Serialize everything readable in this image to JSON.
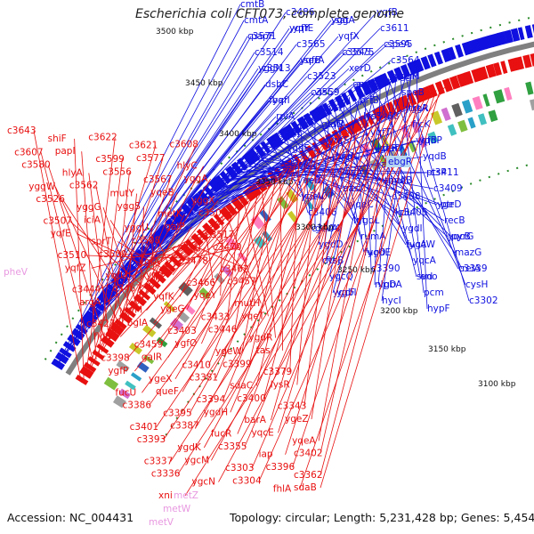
{
  "title": "Escherichia coli CFT073, complete genome",
  "footer": {
    "accession": "Accession: NC_004431",
    "topology": "Topology: circular; Length: 5,231,428 bp; Genes: 5,454"
  },
  "colors": {
    "forward": "#1010e0",
    "reverse": "#e81010",
    "rna": "#e898e0",
    "backbone": "#808080",
    "dots": "#2a8a2a",
    "highlight_box": "#b8d8f0"
  },
  "ticks": [
    "3500 kbp",
    "3450 kbp",
    "3400 kbp",
    "3350 kbp",
    "3300 kbp",
    "3250 kbp",
    "3200 kbp",
    "3150 kbp",
    "3100 kbp"
  ],
  "forward_labels": [
    "cmtB",
    "c3486",
    "yggA",
    "yqfB",
    "cmtA",
    "yqfY",
    "sat",
    "c3611",
    "c3571",
    "yqfE",
    "yqfX",
    "c3595",
    "papF",
    "c3565",
    "c3545",
    "speA",
    "c3514",
    "yqfE",
    "c3575",
    "c3564",
    "yggN",
    "serA",
    "xerD",
    "yggM",
    "c3513",
    "c3523",
    "epd",
    "ubiH",
    "dsbC",
    "c3559",
    "ansB",
    "speB",
    "fba",
    "visC",
    "prfB",
    "yggR",
    "yqfI",
    "gcvH",
    "lysS",
    "tktA",
    "rpiA",
    "gcvP",
    "rc3468",
    "frcK",
    "yggF",
    "yqfA",
    "yqfT",
    "yqfB",
    "recJ",
    "yqfS",
    "ygeR",
    "yqdP",
    "ygeF",
    "ppdA",
    "kduD",
    "yqdB",
    "lysA",
    "ppdC",
    "araE",
    "ptsP",
    "recD",
    "ygeA",
    "thyA",
    "c3411",
    "yqeB",
    "aas",
    "ppdB",
    "c3409",
    "ygeV",
    "recC",
    "c3408",
    "ygeD",
    "c3407",
    "yqeC",
    "kduI",
    "ptr",
    "c3406",
    "lgt",
    "c3405",
    "recB",
    "c3404",
    "ygdL",
    "ygdI",
    "yqcB",
    "gcvA",
    "rumA",
    "fucA",
    "pyrG",
    "ygdD",
    "fucO",
    "ygcW",
    "mazG",
    "cysJ",
    "ygdE",
    "yqcA",
    "c3339",
    "ftsB",
    "c3390",
    "svd",
    "relA",
    "ygcQ",
    "nlpD",
    "eno",
    "cysH",
    "ygcF",
    "ygbA",
    "pcm",
    "c3302",
    "ygbI",
    "hycI",
    "hypF"
  ],
  "reverse_labels": [
    "c3643",
    "shiF",
    "c3622",
    "c3621",
    "c3608",
    "c3607",
    "papI",
    "c3599",
    "c3577",
    "hlyC",
    "c3580",
    "hlyA",
    "c3556",
    "c3567",
    "yggA",
    "yggW",
    "c3562",
    "mutY",
    "yqeB",
    "yggX",
    "c3526",
    "yggG",
    "yggS",
    "metK",
    "c3506",
    "c3507",
    "iciA",
    "yggU",
    "galP",
    "c3517",
    "yqfE",
    "sprT",
    "c3508",
    "c3498",
    "c3470",
    "c3510",
    "c3509",
    "yqfA",
    "c3478",
    "c3462",
    "yqfZ",
    "yqfU",
    "yqfJ",
    "c3466",
    "c3457",
    "c3444",
    "c3467",
    "yqfK",
    "yqeY",
    "mutH",
    "argA",
    "yqfM",
    "ygeG",
    "c3433",
    "yqeT",
    "c3427",
    "bglA",
    "c3403",
    "c3446",
    "ygdR",
    "fldB",
    "c3459",
    "ygfO",
    "ygeW",
    "tas",
    "c3398",
    "galR",
    "c3410",
    "c3399",
    "c3379",
    "ygfP",
    "ygeX",
    "c3381",
    "sdaC",
    "lysR",
    "fucU",
    "queF",
    "c3394",
    "c3400",
    "c3343",
    "c3386",
    "c3395",
    "ygdH",
    "barA",
    "ygeZ",
    "c3401",
    "c3387",
    "fucR",
    "yqcE",
    "yqeA",
    "c3393",
    "ygdK",
    "c3355",
    "iap",
    "c3402",
    "c3337",
    "ygcM",
    "c3303",
    "c3396",
    "c3362",
    "c3336",
    "ygcN",
    "c3304",
    "fhlA",
    "sdaB",
    "xni"
  ],
  "rna_labels": [
    "pheV",
    "metZ",
    "metW",
    "metV"
  ],
  "highlight_label": "ebgR"
}
